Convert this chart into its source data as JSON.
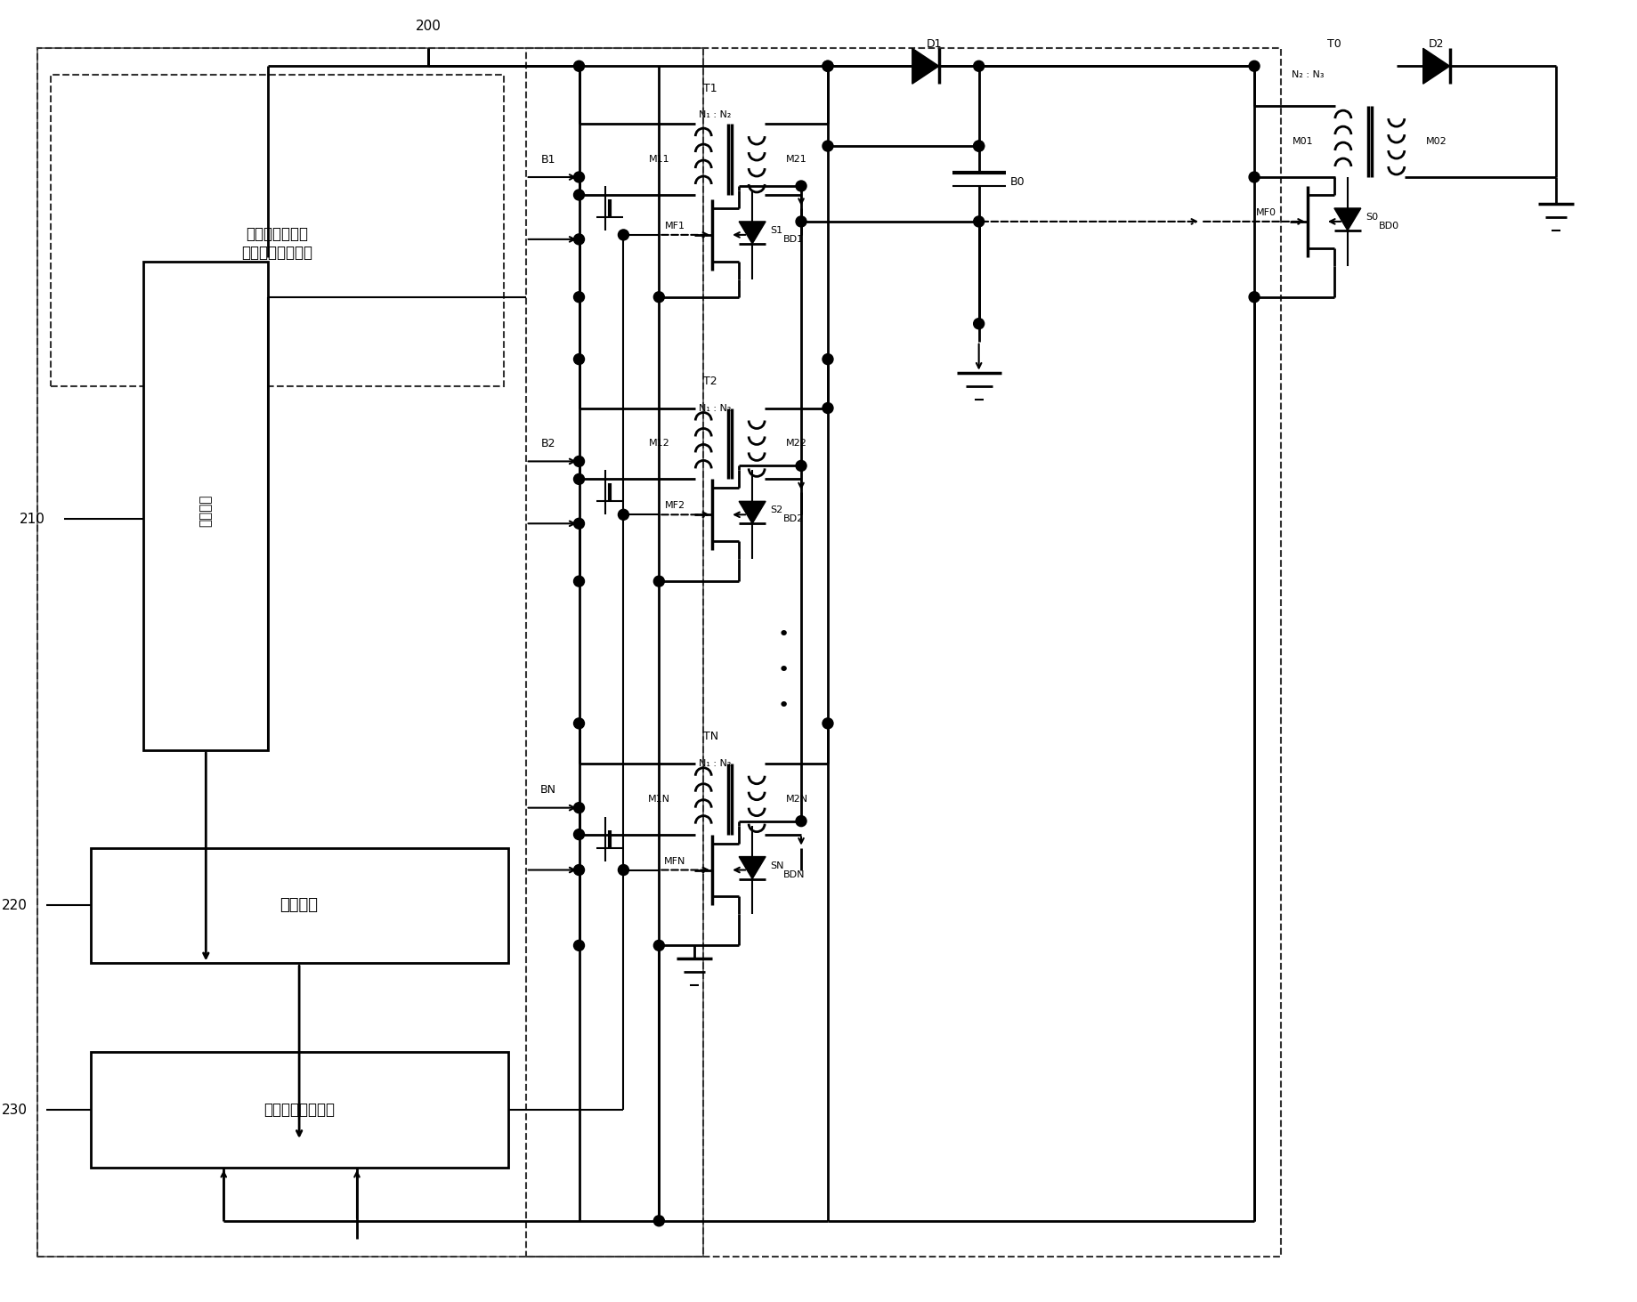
{
  "title": "",
  "bg_color": "#ffffff",
  "line_color": "#000000",
  "dashed_color": "#000000",
  "text_color": "#000000",
  "fig_width": 18.39,
  "fig_height": 14.63,
  "label_200": "200",
  "label_210": "210",
  "label_220": "220",
  "label_230": "230",
  "block1_text": "电压感测和开关\n驱动信号产生单元",
  "block2_text": "感测单元",
  "block3_text": "微处理器",
  "block4_text": "开关驱动电路单元"
}
